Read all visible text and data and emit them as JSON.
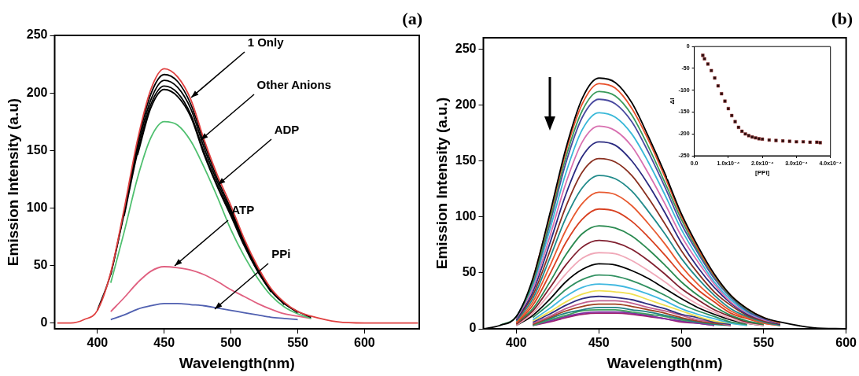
{
  "chart_data": [
    {
      "type": "line",
      "xlabel": "Wavelength(nm)",
      "ylabel": "Emission Intensity (a.u)",
      "xlim": [
        368,
        641
      ],
      "ylim": [
        -5,
        250
      ],
      "xticks": [
        400,
        450,
        500,
        550,
        600
      ],
      "yticks": [
        0,
        50,
        100,
        150,
        200,
        250
      ],
      "x": [
        370,
        380,
        390,
        400,
        410,
        420,
        430,
        440,
        450,
        460,
        470,
        480,
        490,
        500,
        510,
        520,
        530,
        540,
        550,
        560,
        580,
        600,
        640
      ],
      "annotations": [
        "(a)",
        {
          "text": "1 Only",
          "x": 470,
          "y": 196
        },
        {
          "text": "Other Anions",
          "x": 477,
          "y": 159
        },
        {
          "text": "ADP",
          "x": 490,
          "y": 120
        },
        {
          "text": "ATP",
          "x": 458,
          "y": 50
        },
        {
          "text": "PPi",
          "x": 488,
          "y": 12
        }
      ],
      "series": [
        {
          "color": "#e04040",
          "values": [
            0,
            0,
            3,
            11,
            44,
            99,
            159,
            203,
            221,
            214,
            194,
            159,
            128,
            102,
            73,
            49,
            30,
            18,
            10,
            6,
            1,
            0,
            0
          ]
        },
        {
          "color": "#000000",
          "values": [
            null,
            null,
            null,
            11,
            43,
            97,
            156,
            199,
            216,
            210,
            190,
            156,
            125,
            99,
            71,
            48,
            29,
            17,
            10,
            5,
            null,
            null,
            null
          ]
        },
        {
          "color": "#000000",
          "values": [
            null,
            null,
            null,
            null,
            42,
            95,
            152,
            194,
            211,
            205,
            186,
            152,
            122,
            97,
            70,
            46,
            28,
            17,
            9,
            null,
            null,
            null,
            null
          ]
        },
        {
          "color": "#000000",
          "values": [
            null,
            null,
            null,
            null,
            null,
            93,
            148,
            190,
            206,
            200,
            181,
            148,
            119,
            95,
            68,
            45,
            28,
            16,
            null,
            null,
            null,
            null,
            null
          ]
        },
        {
          "color": "#000000",
          "values": [
            null,
            null,
            null,
            null,
            null,
            null,
            146,
            187,
            203,
            197,
            179,
            146,
            118,
            93,
            67,
            45,
            27,
            null,
            null,
            null,
            null,
            null,
            null
          ]
        },
        {
          "color": "#50c070",
          "values": [
            null,
            null,
            null,
            null,
            35,
            79,
            126,
            161,
            175,
            172,
            158,
            135,
            109,
            81,
            58,
            39,
            24,
            14,
            8,
            4,
            null,
            null,
            null
          ]
        },
        {
          "color": "#e06080",
          "values": [
            null,
            null,
            null,
            null,
            10,
            22,
            35,
            45,
            49,
            48,
            46,
            42,
            36,
            29,
            23,
            17,
            12,
            8,
            6,
            4,
            null,
            null,
            null
          ]
        },
        {
          "color": "#5060b0",
          "values": [
            null,
            null,
            null,
            null,
            3,
            7,
            12,
            15,
            17,
            17,
            16,
            15,
            13,
            11,
            9,
            7,
            5,
            4,
            3,
            null,
            null,
            null,
            null
          ]
        }
      ]
    },
    {
      "type": "line",
      "xlabel": "Wavelength(nm)",
      "ylabel": "Emission Intensity (a.u.)",
      "xlim": [
        380,
        600
      ],
      "ylim": [
        0,
        260
      ],
      "xticks": [
        400,
        450,
        500,
        550,
        600
      ],
      "yticks": [
        0,
        50,
        100,
        150,
        200,
        250
      ],
      "x": [
        380,
        390,
        400,
        410,
        420,
        430,
        440,
        450,
        460,
        470,
        480,
        490,
        500,
        510,
        520,
        530,
        540,
        550,
        560,
        580,
        600
      ],
      "annotations": [
        "(b)"
      ],
      "series": [
        {
          "color": "#000000",
          "values": [
            0,
            3,
            11,
            45,
            101,
            161,
            206,
            224,
            220,
            202,
            172,
            139,
            103,
            74,
            49,
            30,
            18,
            10,
            6,
            1,
            0
          ]
        },
        {
          "color": "#e8502a",
          "values": [
            null,
            null,
            null,
            44,
            99,
            158,
            201,
            219,
            215,
            197,
            169,
            136,
            101,
            72,
            48,
            30,
            18,
            10,
            5,
            null,
            null
          ]
        },
        {
          "color": "#3a9a5a",
          "values": [
            null,
            3,
            11,
            42,
            95,
            153,
            195,
            212,
            208,
            191,
            163,
            131,
            98,
            70,
            47,
            29,
            17,
            10,
            5,
            null,
            null
          ]
        },
        {
          "color": "#4a4aa0",
          "values": [
            null,
            null,
            10,
            41,
            92,
            148,
            189,
            205,
            201,
            185,
            158,
            127,
            94,
            68,
            45,
            28,
            16,
            9,
            5,
            null,
            null
          ]
        },
        {
          "color": "#38b8d8",
          "values": [
            null,
            null,
            10,
            39,
            87,
            139,
            178,
            193,
            189,
            174,
            149,
            120,
            89,
            64,
            42,
            26,
            15,
            9,
            5,
            null,
            null
          ]
        },
        {
          "color": "#d870b0",
          "values": [
            null,
            null,
            9,
            36,
            81,
            130,
            167,
            181,
            177,
            163,
            139,
            112,
            83,
            60,
            40,
            24,
            14,
            8,
            5,
            null,
            null
          ]
        },
        {
          "color": "#2a2a80",
          "values": [
            null,
            null,
            8,
            33,
            75,
            120,
            154,
            167,
            164,
            150,
            129,
            104,
            77,
            55,
            37,
            23,
            13,
            8,
            4,
            null,
            null
          ]
        },
        {
          "color": "#8a3020",
          "values": [
            null,
            null,
            8,
            30,
            68,
            109,
            140,
            152,
            149,
            137,
            117,
            94,
            70,
            50,
            33,
            21,
            12,
            7,
            4,
            null,
            null
          ]
        },
        {
          "color": "#208a8a",
          "values": [
            null,
            null,
            7,
            27,
            62,
            99,
            126,
            137,
            134,
            123,
            105,
            85,
            63,
            45,
            30,
            18,
            11,
            6,
            3,
            null,
            null
          ]
        },
        {
          "color": "#e85a30",
          "values": [
            null,
            null,
            6,
            24,
            55,
            88,
            112,
            122,
            120,
            110,
            94,
            76,
            56,
            40,
            27,
            16,
            10,
            5,
            3,
            null,
            null
          ]
        },
        {
          "color": "#d84020",
          "values": [
            null,
            null,
            5,
            21,
            48,
            77,
            98,
            107,
            105,
            96,
            82,
            66,
            49,
            35,
            24,
            14,
            9,
            5,
            3,
            null,
            null
          ]
        },
        {
          "color": "#2a8a50",
          "values": [
            null,
            null,
            5,
            18,
            41,
            66,
            85,
            92,
            90,
            83,
            71,
            57,
            42,
            30,
            20,
            12,
            7,
            4,
            null,
            null,
            null
          ]
        },
        {
          "color": "#802030",
          "values": [
            null,
            null,
            4,
            16,
            36,
            57,
            73,
            79,
            77,
            71,
            61,
            49,
            36,
            26,
            17,
            11,
            6,
            4,
            null,
            null,
            null
          ]
        },
        {
          "color": "#f0a8b8",
          "values": [
            null,
            null,
            3,
            14,
            31,
            49,
            63,
            68,
            67,
            61,
            52,
            42,
            31,
            22,
            15,
            9,
            5,
            3,
            null,
            null,
            null
          ]
        },
        {
          "color": "#000000",
          "values": [
            null,
            null,
            3,
            12,
            26,
            42,
            53,
            58,
            57,
            52,
            45,
            36,
            27,
            19,
            13,
            8,
            5,
            3,
            null,
            null,
            null
          ]
        },
        {
          "color": "#309060",
          "values": [
            null,
            null,
            null,
            10,
            22,
            35,
            44,
            48,
            47,
            43,
            37,
            30,
            22,
            16,
            11,
            6,
            4,
            null,
            null,
            null,
            null
          ]
        },
        {
          "color": "#40b8e0",
          "values": [
            null,
            null,
            null,
            8,
            18,
            29,
            37,
            40,
            39,
            36,
            31,
            25,
            18,
            13,
            9,
            5,
            3,
            null,
            null,
            null,
            null
          ]
        },
        {
          "color": "#f0e050",
          "values": [
            null,
            null,
            null,
            7,
            15,
            24,
            31,
            34,
            33,
            31,
            26,
            21,
            16,
            11,
            7,
            5,
            3,
            null,
            null,
            null,
            null
          ]
        },
        {
          "color": "#303080",
          "values": [
            null,
            null,
            null,
            6,
            13,
            21,
            27,
            29,
            28,
            26,
            22,
            18,
            13,
            10,
            6,
            4,
            null,
            null,
            null,
            null,
            null
          ]
        },
        {
          "color": "#c06090",
          "values": [
            null,
            null,
            null,
            5,
            11,
            18,
            23,
            25,
            25,
            23,
            19,
            16,
            12,
            8,
            6,
            3,
            null,
            null,
            null,
            null,
            null
          ]
        },
        {
          "color": "#a04020",
          "values": [
            null,
            null,
            null,
            4,
            10,
            16,
            20,
            22,
            22,
            20,
            17,
            14,
            10,
            7,
            5,
            3,
            null,
            null,
            null,
            null,
            null
          ]
        },
        {
          "color": "#208080",
          "values": [
            null,
            null,
            null,
            4,
            9,
            14,
            17,
            19,
            19,
            17,
            15,
            12,
            9,
            6,
            4,
            3,
            null,
            null,
            null,
            null,
            null
          ]
        },
        {
          "color": "#40a060",
          "values": [
            null,
            null,
            null,
            3,
            8,
            12,
            16,
            17,
            17,
            15,
            13,
            11,
            8,
            6,
            4,
            null,
            null,
            null,
            null,
            null,
            null
          ]
        },
        {
          "color": "#8030a0",
          "values": [
            null,
            null,
            null,
            3,
            7,
            11,
            14,
            15,
            15,
            14,
            12,
            9,
            7,
            5,
            3,
            null,
            null,
            null,
            null,
            null,
            null
          ]
        },
        {
          "color": "#a02070",
          "values": [
            null,
            null,
            null,
            3,
            6,
            10,
            13,
            14,
            14,
            13,
            11,
            9,
            6,
            5,
            3,
            null,
            null,
            null,
            null,
            null,
            null
          ]
        }
      ]
    },
    {
      "type": "scatter",
      "marker": "square",
      "color": "#2a1010",
      "xlabel": "[PPi]",
      "ylabel": "ΔI",
      "xlim": [
        0,
        0.0004
      ],
      "ylim": [
        -250,
        0
      ],
      "xticks": [
        {
          "value": 0,
          "label": "0.0"
        },
        {
          "value": 0.0001,
          "label": "1.0x10⁻⁴"
        },
        {
          "value": 0.0002,
          "label": "2.0x10⁻⁴"
        },
        {
          "value": 0.0003,
          "label": "3.0x10⁻⁴"
        },
        {
          "value": 0.0004,
          "label": "4.0x10⁻⁴"
        }
      ],
      "yticks": [
        0,
        -50,
        -100,
        -150,
        -200,
        -250
      ],
      "x": [
        2.5e-05,
        3e-05,
        4e-05,
        5e-05,
        6e-05,
        7e-05,
        8e-05,
        9e-05,
        0.0001,
        0.00011,
        0.00012,
        0.00013,
        0.00014,
        0.00015,
        0.00016,
        0.00017,
        0.00018,
        0.00019,
        0.0002,
        0.00022,
        0.00024,
        0.00026,
        0.00028,
        0.0003,
        0.00032,
        0.00034,
        0.00036,
        0.00037
      ],
      "values": [
        -20,
        -28,
        -40,
        -55,
        -72,
        -90,
        -108,
        -125,
        -142,
        -158,
        -172,
        -185,
        -194,
        -200,
        -204,
        -207,
        -209,
        -211,
        -212,
        -214,
        -215,
        -216,
        -217,
        -218,
        -218,
        -219,
        -219,
        -220
      ]
    }
  ]
}
